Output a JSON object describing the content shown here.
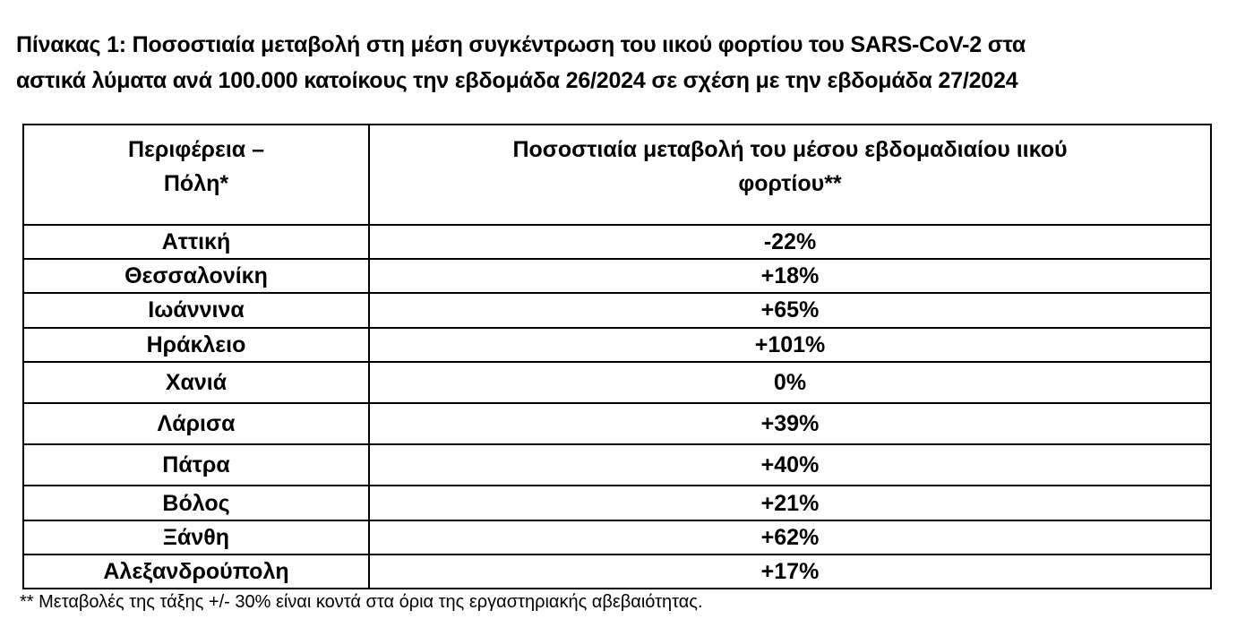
{
  "title": {
    "line1": "Πίνακας 1: Ποσοστιαία μεταβολή στη μέση συγκέντρωση του ιικού φορτίου του SARS-CoV-2 στα",
    "line2": "αστικά λύματα ανά 100.000 κατοίκους την εβδομάδα 26/2024 σε σχέση με την εβδομάδα 27/2024"
  },
  "table": {
    "headers": {
      "region_line1": "Περιφέρεια –",
      "region_line2": "Πόλη*",
      "change_line1": "Ποσοστιαία μεταβολή του μέσου εβδομαδιαίου ιικού",
      "change_line2": "φορτίου**"
    },
    "rows": [
      {
        "region": "Αττική",
        "change": "-22%"
      },
      {
        "region": "Θεσσαλονίκη",
        "change": "+18%"
      },
      {
        "region": "Ιωάννινα",
        "change": "+65%"
      },
      {
        "region": "Ηράκλειο",
        "change": "+101%"
      },
      {
        "region": "Χανιά",
        "change": "0%"
      },
      {
        "region": "Λάρισα",
        "change": "+39%"
      },
      {
        "region": "Πάτρα",
        "change": "+40%"
      },
      {
        "region": "Βόλος",
        "change": "+21%"
      },
      {
        "region": "Ξάνθη",
        "change": "+62%"
      },
      {
        "region": "Αλεξανδρούπολη",
        "change": "+17%"
      }
    ]
  },
  "footnote": "** Μεταβολές της τάξης +/- 30% είναι κοντά στα όρια της εργαστηριακής αβεβαιότητας."
}
